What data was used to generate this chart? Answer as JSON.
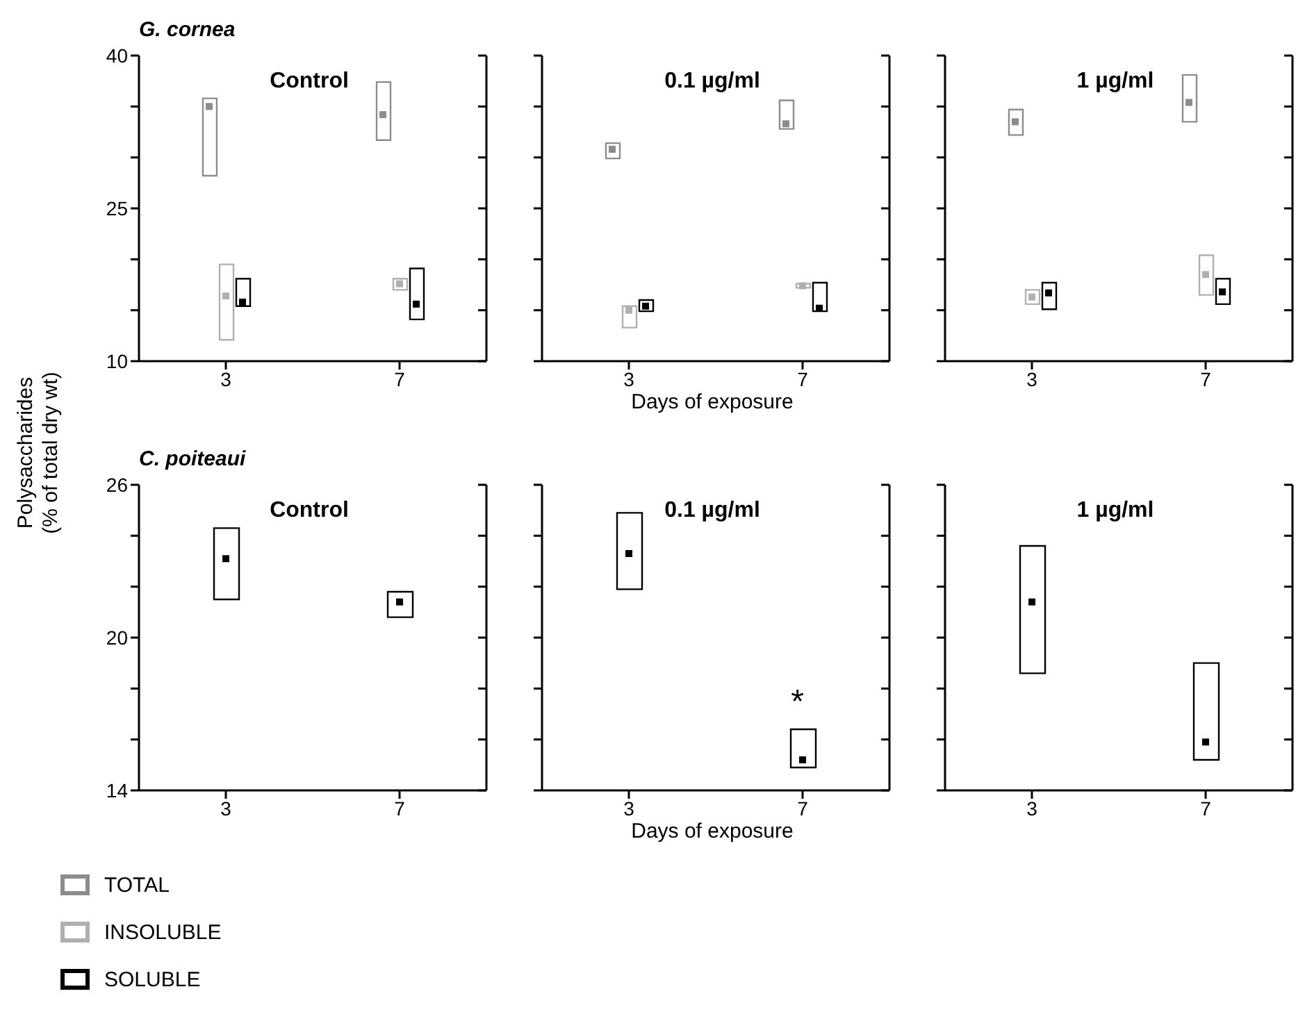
{
  "chart_data": [
    {
      "type": "bar",
      "title": "G. cornea",
      "subtitle": "Control",
      "ylabel": "Polysaccharides\n(% of total dry wt)",
      "categories": [
        "3",
        "7"
      ],
      "ylim": [
        10,
        40
      ],
      "yticks": [
        10,
        {
          "value": 15,
          "label": null
        },
        {
          "value": 20,
          "label": null
        },
        25,
        {
          "value": 30,
          "label": null
        },
        {
          "value": 35,
          "label": null
        },
        40
      ],
      "marker": "square",
      "legend": "bottom left",
      "series": [
        {
          "name": "TOTAL",
          "color": "#8c8c8c",
          "base": [
            28.2,
            31.7
          ],
          "values": [
            7.6,
            5.7
          ]
        },
        {
          "name": "INSOLUBLE",
          "color": "#b0b0b0",
          "base": [
            12.1,
            17.0
          ],
          "values": [
            7.4,
            1.1
          ]
        },
        {
          "name": "SOLUBLE",
          "color": "#000000",
          "base": [
            15.4,
            14.1
          ],
          "values": [
            2.7,
            5.0
          ]
        },
        {
          "type": "scatter",
          "color": "#8c8c8c",
          "x": [
            "3",
            "7"
          ],
          "values": [
            35.0,
            34.2
          ]
        },
        {
          "type": "scatter",
          "color": "#b0b0b0",
          "x": [
            "3",
            "7"
          ],
          "values": [
            16.4,
            17.6
          ]
        },
        {
          "type": "scatter",
          "color": "#000000",
          "x": [
            "3",
            "7"
          ],
          "values": [
            15.8,
            15.6
          ]
        }
      ]
    },
    {
      "type": "bar",
      "subtitle": "0.1 µg/ml",
      "xlabel": "Days of exposure",
      "categories": [
        "3",
        "7"
      ],
      "ylim": [
        10,
        40
      ],
      "yticks": [
        10,
        {
          "value": 15,
          "label": null
        },
        {
          "value": 20,
          "label": null
        },
        25,
        {
          "value": 30,
          "label": null
        },
        {
          "value": 35,
          "label": null
        },
        40
      ],
      "tick_labels": "x",
      "marker": "square",
      "series": [
        {
          "color": "#8c8c8c",
          "base": [
            29.9,
            32.8
          ],
          "values": [
            1.5,
            2.8
          ]
        },
        {
          "color": "#b0b0b0",
          "base": [
            13.3,
            17.2
          ],
          "values": [
            2.1,
            0.4
          ]
        },
        {
          "color": "#000000",
          "base": [
            14.9,
            14.9
          ],
          "values": [
            1.1,
            2.8
          ]
        },
        {
          "type": "scatter",
          "color": "#8c8c8c",
          "x": [
            "3",
            "7"
          ],
          "values": [
            30.8,
            33.3
          ]
        },
        {
          "type": "scatter",
          "color": "#b0b0b0",
          "x": [
            "3",
            "7"
          ],
          "values": [
            15.0,
            17.4
          ]
        },
        {
          "type": "scatter",
          "color": "#000000",
          "x": [
            "3",
            "7"
          ],
          "values": [
            15.4,
            15.2
          ]
        }
      ]
    },
    {
      "type": "bar",
      "subtitle": "1 µg/ml",
      "categories": [
        "3",
        "7"
      ],
      "ylim": [
        10,
        40
      ],
      "yticks": [
        10,
        {
          "value": 15,
          "label": null
        },
        {
          "value": 20,
          "label": null
        },
        25,
        {
          "value": 30,
          "label": null
        },
        {
          "value": 35,
          "label": null
        },
        40
      ],
      "tick_labels": "x",
      "marker": "square",
      "series": [
        {
          "color": "#8c8c8c",
          "base": [
            32.2,
            33.5
          ],
          "values": [
            2.5,
            4.6
          ]
        },
        {
          "color": "#b0b0b0",
          "base": [
            15.6,
            16.5
          ],
          "values": [
            1.4,
            3.9
          ]
        },
        {
          "color": "#000000",
          "base": [
            15.1,
            15.6
          ],
          "values": [
            2.6,
            2.5
          ]
        },
        {
          "type": "scatter",
          "color": "#8c8c8c",
          "x": [
            "3",
            "7"
          ],
          "values": [
            33.5,
            35.4
          ]
        },
        {
          "type": "scatter",
          "color": "#b0b0b0",
          "x": [
            "3",
            "7"
          ],
          "values": [
            16.3,
            18.5
          ]
        },
        {
          "type": "scatter",
          "color": "#000000",
          "x": [
            "3",
            "7"
          ],
          "values": [
            16.7,
            16.8
          ]
        }
      ]
    },
    {
      "type": "bar",
      "title": "C. poiteaui",
      "subtitle": "Control",
      "categories": [
        "3",
        "7"
      ],
      "ylim": [
        14,
        26
      ],
      "yticks": [
        14,
        {
          "value": 16,
          "label": null
        },
        {
          "value": 18,
          "label": null
        },
        20,
        {
          "value": 22,
          "label": null
        },
        {
          "value": 24,
          "label": null
        },
        26
      ],
      "marker": "square",
      "series": [
        {
          "color": "#000000",
          "base": [
            21.5,
            20.8
          ],
          "values": [
            2.8,
            1.0
          ]
        },
        {
          "type": "scatter",
          "color": "#000000",
          "x": [
            "3",
            "7"
          ],
          "values": [
            23.1,
            21.4
          ]
        }
      ]
    },
    {
      "type": "bar",
      "subtitle": "0.1 µg/ml",
      "xlabel": "Days of exposure",
      "categories": [
        "3",
        "7"
      ],
      "ylim": [
        14,
        26
      ],
      "yticks": [
        14,
        {
          "value": 16,
          "label": null
        },
        {
          "value": 18,
          "label": null
        },
        20,
        {
          "value": 22,
          "label": null
        },
        {
          "value": 24,
          "label": null
        },
        26
      ],
      "tick_labels": "x",
      "marker": "square",
      "annotations": [
        "*"
      ],
      "series": [
        {
          "color": "#000000",
          "base": [
            21.9,
            14.9
          ],
          "values": [
            3.0,
            1.5
          ]
        },
        {
          "type": "scatter",
          "color": "#000000",
          "x": [
            "3",
            "7"
          ],
          "values": [
            23.3,
            15.2
          ]
        }
      ]
    },
    {
      "type": "bar",
      "subtitle": "1 µg/ml",
      "categories": [
        "3",
        "7"
      ],
      "ylim": [
        14,
        26
      ],
      "yticks": [
        14,
        {
          "value": 16,
          "label": null
        },
        {
          "value": 18,
          "label": null
        },
        20,
        {
          "value": 22,
          "label": null
        },
        {
          "value": 24,
          "label": null
        },
        26
      ],
      "tick_labels": "x",
      "marker": "square",
      "series": [
        {
          "color": "#000000",
          "base": [
            18.6,
            15.2
          ],
          "values": [
            5.0,
            3.8
          ]
        },
        {
          "type": "scatter",
          "color": "#000000",
          "x": [
            "3",
            "7"
          ],
          "values": [
            21.4,
            15.9
          ]
        }
      ]
    }
  ]
}
